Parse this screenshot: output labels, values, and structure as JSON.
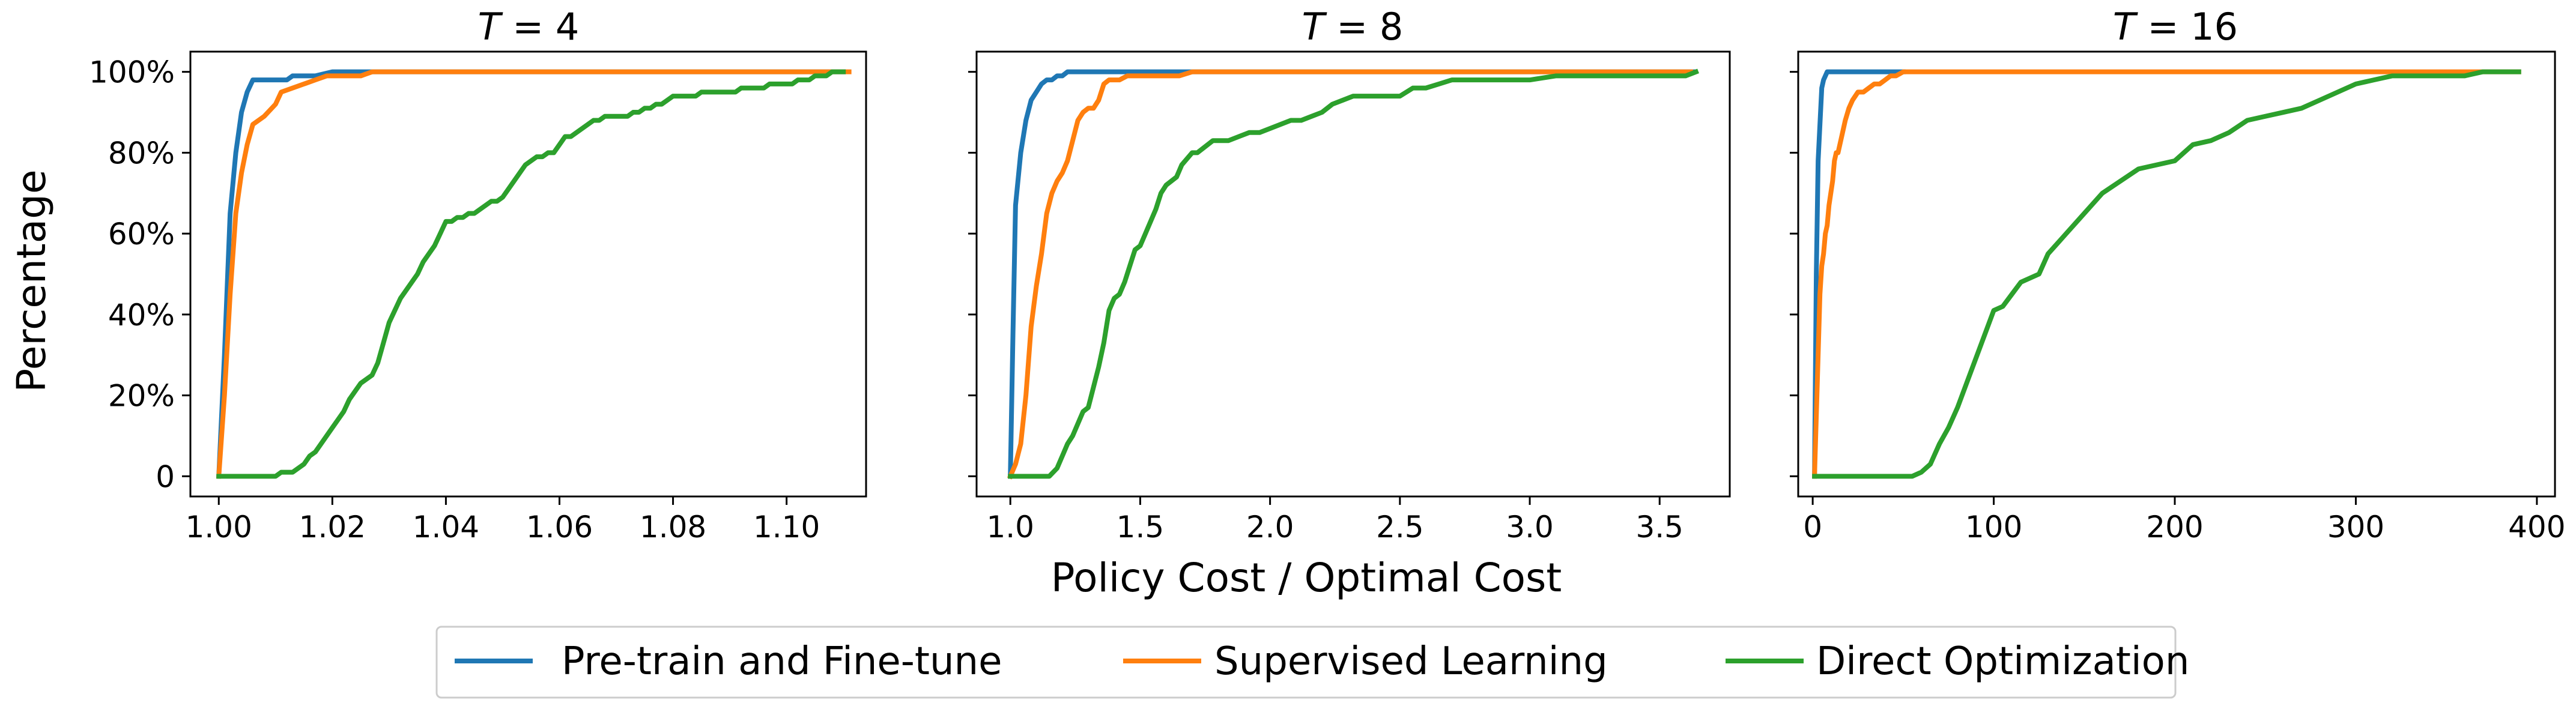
{
  "figure": {
    "ylabel": "Percentage",
    "xlabel": "Policy Cost / Optimal Cost"
  },
  "legend": {
    "placement": "bottom-center",
    "entries": [
      {
        "label": "Pre-train and Fine-tune",
        "color": "#1f77b4"
      },
      {
        "label": "Supervised Learning",
        "color": "#ff7f0e"
      },
      {
        "label": "Direct Optimization",
        "color": "#2ca02c"
      }
    ]
  },
  "chart_data": [
    {
      "type": "line",
      "title_prefix": "T",
      "title_value": "4",
      "title": "T = 4",
      "xlim": [
        0.995,
        1.114
      ],
      "ylim": [
        -0.05,
        1.05
      ],
      "xticks": [
        1.0,
        1.02,
        1.04,
        1.06,
        1.08,
        1.1
      ],
      "xtick_labels": [
        "1.00",
        "1.02",
        "1.04",
        "1.06",
        "1.08",
        "1.10"
      ],
      "yticks": [
        0,
        0.2,
        0.4,
        0.6,
        0.8,
        1.0
      ],
      "ytick_labels": [
        "0",
        "20%",
        "40%",
        "60%",
        "80%",
        "100%"
      ],
      "grid": false,
      "series": [
        {
          "name": "Pre-train and Fine-tune",
          "color": "#1f77b4",
          "x": [
            1.0,
            1.001,
            1.002,
            1.003,
            1.004,
            1.005,
            1.006,
            1.007,
            1.008,
            1.009,
            1.012,
            1.013,
            1.015,
            1.017,
            1.02,
            1.022,
            1.11
          ],
          "y": [
            0.0,
            0.3,
            0.65,
            0.8,
            0.9,
            0.95,
            0.98,
            0.98,
            0.98,
            0.98,
            0.98,
            0.99,
            0.99,
            0.99,
            1.0,
            1.0,
            1.0
          ]
        },
        {
          "name": "Supervised Learning",
          "color": "#ff7f0e",
          "x": [
            1.0,
            1.001,
            1.002,
            1.003,
            1.004,
            1.005,
            1.006,
            1.008,
            1.01,
            1.011,
            1.013,
            1.015,
            1.017,
            1.019,
            1.022,
            1.025,
            1.027,
            1.03,
            1.05,
            1.111
          ],
          "y": [
            0.0,
            0.2,
            0.45,
            0.65,
            0.75,
            0.82,
            0.87,
            0.89,
            0.92,
            0.95,
            0.96,
            0.97,
            0.98,
            0.99,
            0.99,
            0.99,
            1.0,
            1.0,
            1.0,
            1.0
          ]
        },
        {
          "name": "Direct Optimization",
          "color": "#2ca02c",
          "x": [
            1.0,
            1.01,
            1.011,
            1.012,
            1.013,
            1.014,
            1.015,
            1.016,
            1.017,
            1.018,
            1.019,
            1.02,
            1.021,
            1.022,
            1.023,
            1.024,
            1.025,
            1.026,
            1.027,
            1.028,
            1.029,
            1.03,
            1.031,
            1.032,
            1.033,
            1.034,
            1.035,
            1.036,
            1.037,
            1.038,
            1.039,
            1.04,
            1.041,
            1.042,
            1.043,
            1.044,
            1.045,
            1.046,
            1.047,
            1.048,
            1.049,
            1.05,
            1.051,
            1.052,
            1.053,
            1.054,
            1.055,
            1.056,
            1.057,
            1.058,
            1.059,
            1.06,
            1.061,
            1.062,
            1.063,
            1.064,
            1.065,
            1.066,
            1.067,
            1.068,
            1.069,
            1.07,
            1.071,
            1.072,
            1.073,
            1.074,
            1.075,
            1.076,
            1.077,
            1.078,
            1.079,
            1.08,
            1.081,
            1.082,
            1.083,
            1.084,
            1.085,
            1.086,
            1.087,
            1.088,
            1.089,
            1.09,
            1.091,
            1.092,
            1.093,
            1.094,
            1.095,
            1.096,
            1.097,
            1.098,
            1.099,
            1.1,
            1.101,
            1.102,
            1.103,
            1.104,
            1.105,
            1.106,
            1.107,
            1.108,
            1.109,
            1.11
          ],
          "y": [
            0.0,
            0.0,
            0.01,
            0.01,
            0.01,
            0.02,
            0.03,
            0.05,
            0.06,
            0.08,
            0.1,
            0.12,
            0.14,
            0.16,
            0.19,
            0.21,
            0.23,
            0.24,
            0.25,
            0.28,
            0.33,
            0.38,
            0.41,
            0.44,
            0.46,
            0.48,
            0.5,
            0.53,
            0.55,
            0.57,
            0.6,
            0.63,
            0.63,
            0.64,
            0.64,
            0.65,
            0.65,
            0.66,
            0.67,
            0.68,
            0.68,
            0.69,
            0.71,
            0.73,
            0.75,
            0.77,
            0.78,
            0.79,
            0.79,
            0.8,
            0.8,
            0.82,
            0.84,
            0.84,
            0.85,
            0.86,
            0.87,
            0.88,
            0.88,
            0.89,
            0.89,
            0.89,
            0.89,
            0.89,
            0.9,
            0.9,
            0.91,
            0.91,
            0.92,
            0.92,
            0.93,
            0.94,
            0.94,
            0.94,
            0.94,
            0.94,
            0.95,
            0.95,
            0.95,
            0.95,
            0.95,
            0.95,
            0.95,
            0.96,
            0.96,
            0.96,
            0.96,
            0.96,
            0.97,
            0.97,
            0.97,
            0.97,
            0.97,
            0.98,
            0.98,
            0.98,
            0.99,
            0.99,
            0.99,
            1.0,
            1.0,
            1.0
          ]
        }
      ]
    },
    {
      "type": "line",
      "title_prefix": "T",
      "title_value": "8",
      "title": "T = 8",
      "xlim": [
        0.87,
        3.77
      ],
      "ylim": [
        -0.05,
        1.05
      ],
      "xticks": [
        1.0,
        1.5,
        2.0,
        2.5,
        3.0,
        3.5
      ],
      "xtick_labels": [
        "1.0",
        "1.5",
        "2.0",
        "2.5",
        "3.0",
        "3.5"
      ],
      "yticks": [
        0,
        0.2,
        0.4,
        0.6,
        0.8,
        1.0
      ],
      "ytick_labels": [
        "",
        "",
        "",
        "",
        "",
        ""
      ],
      "grid": false,
      "series": [
        {
          "name": "Pre-train and Fine-tune",
          "color": "#1f77b4",
          "x": [
            1.0,
            1.01,
            1.02,
            1.04,
            1.06,
            1.08,
            1.1,
            1.12,
            1.14,
            1.16,
            1.18,
            1.2,
            1.22,
            1.25,
            1.3,
            1.4,
            1.5,
            1.6,
            1.7,
            3.63
          ],
          "y": [
            0.0,
            0.35,
            0.67,
            0.8,
            0.88,
            0.93,
            0.95,
            0.97,
            0.98,
            0.98,
            0.99,
            0.99,
            1.0,
            1.0,
            1.0,
            1.0,
            1.0,
            1.0,
            1.0,
            1.0
          ]
        },
        {
          "name": "Supervised Learning",
          "color": "#ff7f0e",
          "x": [
            1.0,
            1.02,
            1.04,
            1.06,
            1.08,
            1.1,
            1.12,
            1.14,
            1.16,
            1.18,
            1.2,
            1.22,
            1.24,
            1.26,
            1.28,
            1.3,
            1.32,
            1.34,
            1.36,
            1.38,
            1.4,
            1.42,
            1.45,
            1.5,
            1.55,
            1.6,
            1.65,
            1.7,
            3.62
          ],
          "y": [
            0.0,
            0.03,
            0.08,
            0.2,
            0.37,
            0.47,
            0.55,
            0.65,
            0.7,
            0.73,
            0.75,
            0.78,
            0.83,
            0.88,
            0.9,
            0.91,
            0.91,
            0.93,
            0.97,
            0.98,
            0.98,
            0.98,
            0.99,
            0.99,
            0.99,
            0.99,
            0.99,
            1.0,
            1.0
          ]
        },
        {
          "name": "Direct Optimization",
          "color": "#2ca02c",
          "x": [
            1.0,
            1.15,
            1.18,
            1.2,
            1.22,
            1.24,
            1.26,
            1.28,
            1.3,
            1.32,
            1.34,
            1.36,
            1.38,
            1.4,
            1.42,
            1.44,
            1.46,
            1.48,
            1.5,
            1.52,
            1.54,
            1.56,
            1.58,
            1.6,
            1.62,
            1.64,
            1.66,
            1.7,
            1.72,
            1.74,
            1.76,
            1.78,
            1.8,
            1.84,
            1.88,
            1.92,
            1.96,
            2.0,
            2.04,
            2.08,
            2.12,
            2.16,
            2.2,
            2.24,
            2.28,
            2.32,
            2.36,
            2.4,
            2.44,
            2.5,
            2.55,
            2.6,
            2.65,
            2.7,
            2.8,
            2.9,
            3.0,
            3.1,
            3.2,
            3.3,
            3.4,
            3.5,
            3.6,
            3.64
          ],
          "y": [
            0.0,
            0.0,
            0.02,
            0.05,
            0.08,
            0.1,
            0.13,
            0.16,
            0.17,
            0.22,
            0.27,
            0.33,
            0.41,
            0.44,
            0.45,
            0.48,
            0.52,
            0.56,
            0.57,
            0.6,
            0.63,
            0.66,
            0.7,
            0.72,
            0.73,
            0.74,
            0.77,
            0.8,
            0.8,
            0.81,
            0.82,
            0.83,
            0.83,
            0.83,
            0.84,
            0.85,
            0.85,
            0.86,
            0.87,
            0.88,
            0.88,
            0.89,
            0.9,
            0.92,
            0.93,
            0.94,
            0.94,
            0.94,
            0.94,
            0.94,
            0.96,
            0.96,
            0.97,
            0.98,
            0.98,
            0.98,
            0.98,
            0.99,
            0.99,
            0.99,
            0.99,
            0.99,
            0.99,
            1.0
          ]
        }
      ]
    },
    {
      "type": "line",
      "title_prefix": "T",
      "title_value": "16",
      "title": "T = 16",
      "xlim": [
        -8,
        410
      ],
      "ylim": [
        -0.05,
        1.05
      ],
      "xticks": [
        0,
        100,
        200,
        300,
        400
      ],
      "xtick_labels": [
        "0",
        "100",
        "200",
        "300",
        "400"
      ],
      "yticks": [
        0,
        0.2,
        0.4,
        0.6,
        0.8,
        1.0
      ],
      "ytick_labels": [
        "",
        "",
        "",
        "",
        "",
        ""
      ],
      "grid": false,
      "series": [
        {
          "name": "Pre-train and Fine-tune",
          "color": "#1f77b4",
          "x": [
            1.0,
            2.0,
            3.0,
            4.0,
            5.0,
            6.0,
            8.0,
            10.0,
            20.0,
            30.0,
            50.0
          ],
          "y": [
            0.0,
            0.5,
            0.78,
            0.87,
            0.96,
            0.98,
            1.0,
            1.0,
            1.0,
            1.0,
            1.0
          ]
        },
        {
          "name": "Supervised Learning",
          "color": "#ff7f0e",
          "x": [
            1.0,
            3.0,
            4.0,
            5.0,
            6.0,
            7.0,
            8.0,
            9.0,
            10.0,
            11.0,
            12.0,
            13.0,
            14.0,
            16.0,
            18.0,
            20.0,
            22.0,
            25.0,
            28.0,
            31.0,
            34.0,
            37.0,
            40.0,
            43.0,
            46.0,
            50.0,
            55.0,
            390.0
          ],
          "y": [
            0.0,
            0.3,
            0.45,
            0.52,
            0.55,
            0.6,
            0.62,
            0.67,
            0.7,
            0.73,
            0.78,
            0.8,
            0.8,
            0.84,
            0.88,
            0.91,
            0.93,
            0.95,
            0.95,
            0.96,
            0.97,
            0.97,
            0.98,
            0.99,
            0.99,
            1.0,
            1.0,
            1.0
          ]
        },
        {
          "name": "Direct Optimization",
          "color": "#2ca02c",
          "x": [
            1.0,
            55.0,
            60.0,
            65.0,
            70.0,
            75.0,
            80.0,
            85.0,
            90.0,
            95.0,
            100.0,
            105.0,
            110.0,
            115.0,
            120.0,
            125.0,
            130.0,
            140.0,
            150.0,
            160.0,
            170.0,
            180.0,
            190.0,
            200.0,
            210.0,
            220.0,
            230.0,
            240.0,
            250.0,
            260.0,
            270.0,
            280.0,
            290.0,
            300.0,
            310.0,
            320.0,
            330.0,
            340.0,
            350.0,
            360.0,
            370.0,
            380.0,
            390.0
          ],
          "y": [
            0.0,
            0.0,
            0.01,
            0.03,
            0.08,
            0.12,
            0.17,
            0.23,
            0.29,
            0.35,
            0.41,
            0.42,
            0.45,
            0.48,
            0.49,
            0.5,
            0.55,
            0.6,
            0.65,
            0.7,
            0.73,
            0.76,
            0.77,
            0.78,
            0.82,
            0.83,
            0.85,
            0.88,
            0.89,
            0.9,
            0.91,
            0.93,
            0.95,
            0.97,
            0.98,
            0.99,
            0.99,
            0.99,
            0.99,
            0.99,
            1.0,
            1.0,
            1.0
          ]
        }
      ]
    }
  ]
}
